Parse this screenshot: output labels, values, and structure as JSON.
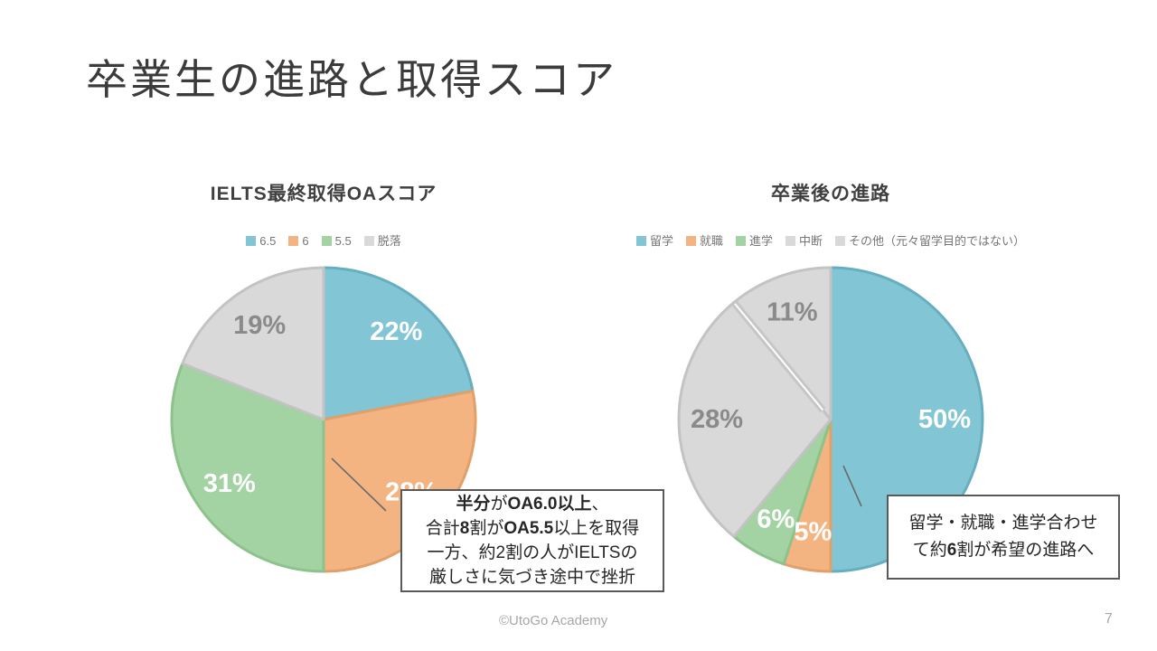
{
  "slide": {
    "title": "卒業生の進路と取得スコア",
    "footer": "©UtoGo Academy",
    "page_number": "7"
  },
  "chart_data": [
    {
      "type": "pie",
      "title": "IELTS最終取得OAスコア",
      "unit": "%",
      "legend_position": "top",
      "start_angle": "top-clockwise",
      "labels": [
        "6.5",
        "6",
        "5.5",
        "脱落"
      ],
      "values": [
        22,
        28,
        31,
        19
      ],
      "colors": [
        "#82C6D5",
        "#F4B482",
        "#A3D3A2",
        "#D9D9D9"
      ],
      "border_colors": [
        "#68AEC1",
        "#E19F6A",
        "#8CC28C",
        "#C3C3C3"
      ],
      "label_colors": [
        "#FFFFFF",
        "#FFFFFF",
        "#FFFFFF",
        "#8A8A8A"
      ],
      "annotation_lines": [
        [
          {
            "t": "半分",
            "b": true
          },
          {
            "t": "が"
          },
          {
            "t": "OA6.0以上",
            "b": true
          },
          {
            "t": "、"
          }
        ],
        [
          {
            "t": "合計"
          },
          {
            "t": "8",
            "b": true
          },
          {
            "t": "割が"
          },
          {
            "t": "OA5.5",
            "b": true
          },
          {
            "t": "以上を取得"
          }
        ],
        [
          {
            "t": "一方、約2割の人がIELTSの"
          }
        ],
        [
          {
            "t": "厳しさに気づき途中で挫折"
          }
        ]
      ]
    },
    {
      "type": "pie",
      "title": "卒業後の進路",
      "unit": "%",
      "legend_position": "top",
      "start_angle": "top-clockwise",
      "labels": [
        "留学",
        "就職",
        "進学",
        "中断",
        "その他（元々留学目的ではない）"
      ],
      "values": [
        50,
        5,
        6,
        28,
        11
      ],
      "colors": [
        "#82C6D5",
        "#F4B482",
        "#A3D3A2",
        "#D9D9D9",
        "#D9D9D9"
      ],
      "border_colors": [
        "#68AEC1",
        "#E19F6A",
        "#8CC28C",
        "#C3C3C3",
        "#C3C3C3"
      ],
      "label_colors": [
        "#FFFFFF",
        "#FFFFFF",
        "#FFFFFF",
        "#8A8A8A",
        "#8A8A8A"
      ],
      "divider_after_index": 3,
      "annotation_lines": [
        [
          {
            "t": "留学・就職・進学合わせ"
          }
        ],
        [
          {
            "t": "て約"
          },
          {
            "t": "6",
            "b": true
          },
          {
            "t": "割が希望の進路へ"
          }
        ]
      ]
    }
  ]
}
